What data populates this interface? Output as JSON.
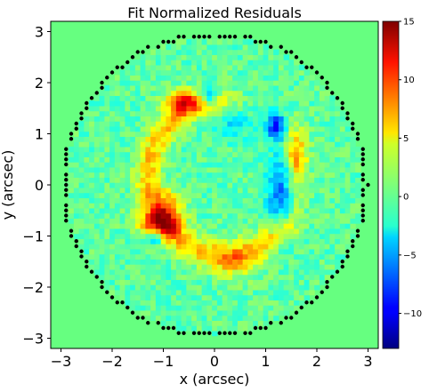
{
  "chart_data": {
    "type": "heatmap",
    "title": "Fit Normalized Residuals",
    "xlabel": "x (arcsec)",
    "ylabel": "y (arcsec)",
    "xlim": [
      -3.2,
      3.2
    ],
    "ylim": [
      -3.2,
      3.2
    ],
    "x_ticks": [
      -3,
      -2,
      -1,
      0,
      1,
      2,
      3
    ],
    "y_ticks": [
      -3,
      -2,
      -1,
      0,
      1,
      2,
      3
    ],
    "x_tick_labels": [
      "−3",
      "−2",
      "−1",
      "0",
      "1",
      "2",
      "3"
    ],
    "y_tick_labels": [
      "−3",
      "−2",
      "−1",
      "0",
      "1",
      "2",
      "3"
    ],
    "colormap": "jet",
    "colorbar": {
      "vmin": -13,
      "vmax": 15,
      "ticks": [
        15,
        10,
        5,
        0,
        -5,
        -10
      ],
      "tick_labels": [
        "15",
        "10",
        "5",
        "0",
        "−5",
        "−10"
      ]
    },
    "background_value": 0,
    "mask_border": {
      "shape": "circle",
      "center": [
        0,
        0
      ],
      "radius": 2.95,
      "marker": "black dots"
    },
    "features": [
      {
        "kind": "arc",
        "center": [
          0.2,
          0.15
        ],
        "radius": 1.5,
        "angle_start_deg": 100,
        "angle_end_deg": 315,
        "width": 0.18,
        "value": 6
      },
      {
        "kind": "blob",
        "center": [
          -0.65,
          1.65
        ],
        "sigma": [
          0.22,
          0.15
        ],
        "value": 10
      },
      {
        "kind": "blob",
        "center": [
          -1.05,
          -0.75
        ],
        "sigma": [
          0.28,
          0.18
        ],
        "value": 11
      },
      {
        "kind": "blob",
        "center": [
          -0.9,
          -0.35
        ],
        "sigma": [
          0.2,
          0.2
        ],
        "value": 6
      },
      {
        "kind": "blob",
        "center": [
          0.4,
          -1.55
        ],
        "sigma": [
          0.35,
          0.2
        ],
        "value": 4
      },
      {
        "kind": "blob",
        "center": [
          1.6,
          0.55
        ],
        "sigma": [
          0.15,
          0.4
        ],
        "value": 8
      },
      {
        "kind": "blob",
        "center": [
          1.5,
          -0.35
        ],
        "sigma": [
          0.15,
          0.45
        ],
        "value": 4
      },
      {
        "kind": "blob",
        "center": [
          -0.1,
          1.75
        ],
        "sigma": [
          0.12,
          0.12
        ],
        "value": -8
      },
      {
        "kind": "blob",
        "center": [
          1.2,
          1.15
        ],
        "sigma": [
          0.12,
          0.18
        ],
        "value": -9
      },
      {
        "kind": "blob",
        "center": [
          1.35,
          -0.2
        ],
        "sigma": [
          0.2,
          0.55
        ],
        "value": -8
      },
      {
        "kind": "blob",
        "center": [
          -1.15,
          -1.0
        ],
        "sigma": [
          0.1,
          0.12
        ],
        "value": -7
      },
      {
        "kind": "blob",
        "center": [
          0.35,
          1.2
        ],
        "sigma": [
          0.25,
          0.2
        ],
        "value": -3
      }
    ]
  }
}
